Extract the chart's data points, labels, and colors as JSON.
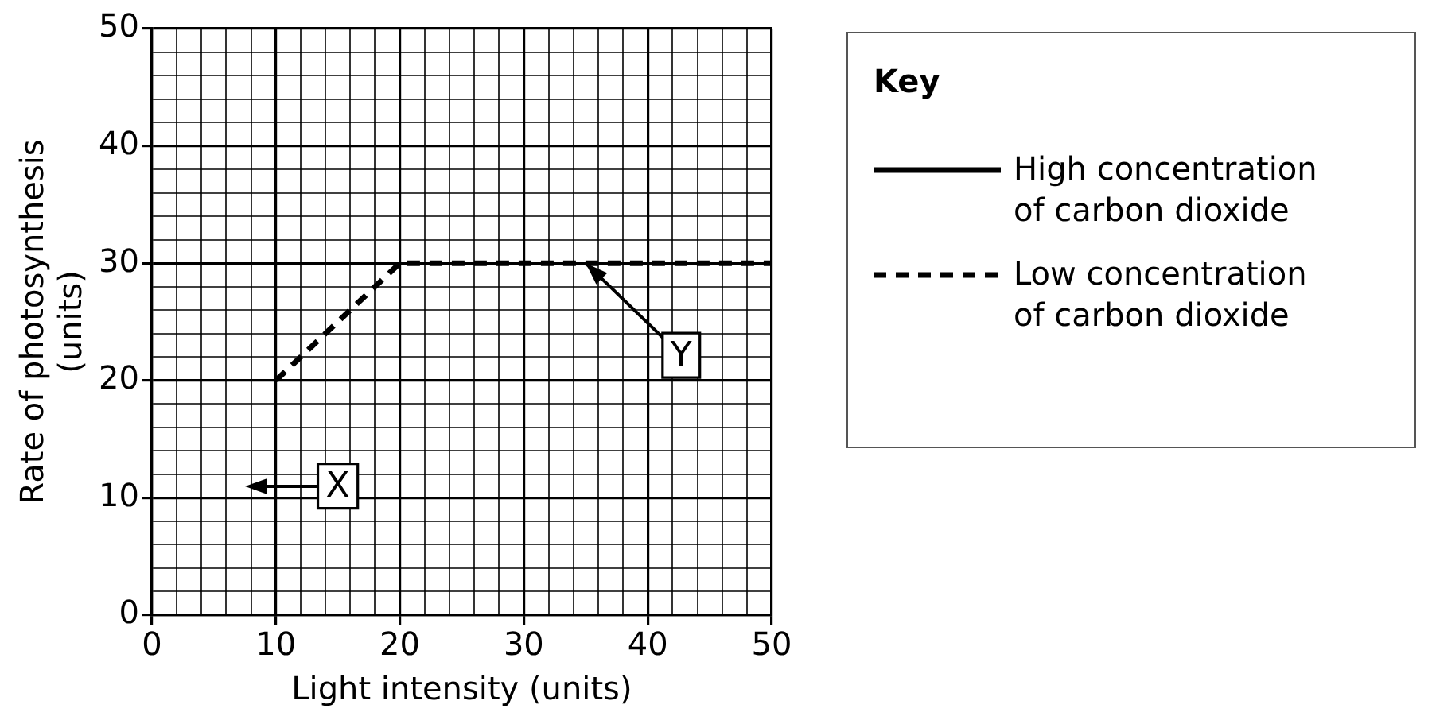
{
  "chart_data": {
    "type": "line",
    "xlabel": "Light intensity (units)",
    "ylabel": "Rate of photosynthesis\n(units)",
    "legend_title": "Key",
    "legend": "right",
    "x": [
      10,
      20,
      35,
      50
    ],
    "series": [
      {
        "name": "High concentration\nof carbon dioxide",
        "color": "#000000",
        "line_style": "solid",
        "values": [
          null,
          null,
          null,
          null
        ]
      },
      {
        "name": "Low concentration\nof carbon dioxide",
        "color": "#000000",
        "line_style": "dashed",
        "values": [
          20,
          30,
          30,
          30
        ]
      }
    ],
    "xlim": [
      0,
      50
    ],
    "ylim": [
      0,
      50
    ],
    "xticks": [
      0,
      {
        "value": 2,
        "label": null
      },
      {
        "value": 4,
        "label": null
      },
      {
        "value": 6,
        "label": null
      },
      {
        "value": 8,
        "label": null
      },
      10,
      {
        "value": 12,
        "label": null
      },
      {
        "value": 14,
        "label": null
      },
      {
        "value": 16,
        "label": null
      },
      {
        "value": 18,
        "label": null
      },
      20,
      {
        "value": 22,
        "label": null
      },
      {
        "value": 24,
        "label": null
      },
      {
        "value": 26,
        "label": null
      },
      {
        "value": 28,
        "label": null
      },
      30,
      {
        "value": 32,
        "label": null
      },
      {
        "value": 34,
        "label": null
      },
      {
        "value": 36,
        "label": null
      },
      {
        "value": 38,
        "label": null
      },
      40,
      {
        "value": 42,
        "label": null
      },
      {
        "value": 44,
        "label": null
      },
      {
        "value": 46,
        "label": null
      },
      {
        "value": 48,
        "label": null
      },
      50
    ],
    "yticks": [
      0,
      {
        "value": 2,
        "label": null
      },
      {
        "value": 4,
        "label": null
      },
      {
        "value": 6,
        "label": null
      },
      {
        "value": 8,
        "label": null
      },
      10,
      {
        "value": 12,
        "label": null
      },
      {
        "value": 14,
        "label": null
      },
      {
        "value": 16,
        "label": null
      },
      {
        "value": 18,
        "label": null
      },
      20,
      {
        "value": 22,
        "label": null
      },
      {
        "value": 24,
        "label": null
      },
      {
        "value": 26,
        "label": null
      },
      {
        "value": 28,
        "label": null
      },
      30,
      {
        "value": 32,
        "label": null
      },
      {
        "value": 34,
        "label": null
      },
      {
        "value": 36,
        "label": null
      },
      {
        "value": 38,
        "label": null
      },
      40,
      {
        "value": 42,
        "label": null
      },
      {
        "value": 44,
        "label": null
      },
      {
        "value": 46,
        "label": null
      },
      {
        "value": 48,
        "label": null
      },
      50
    ],
    "grid": true,
    "marker": "none",
    "annotations": [
      "X",
      {
        "text": "Y",
        "x": 35,
        "y": 30
      }
    ]
  }
}
